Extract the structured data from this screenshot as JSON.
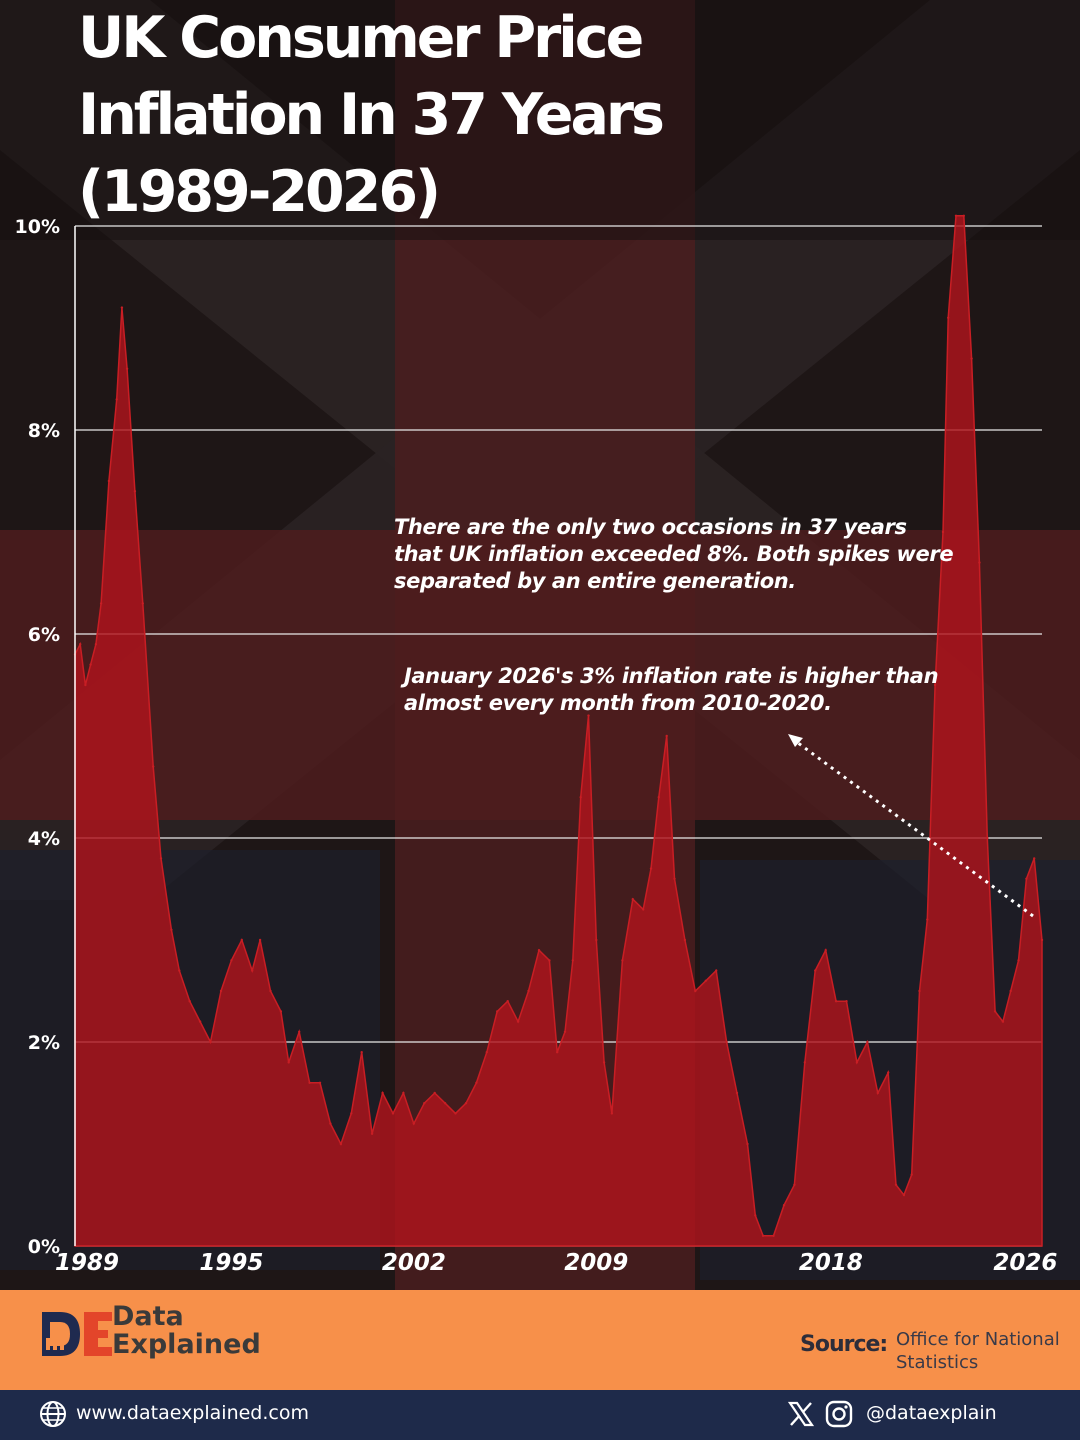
{
  "title": "UK Consumer Price Inflation In 37 Years (1989-2026)",
  "annotations": {
    "spikes": "There are the only two occasions in 37 years that UK inflation exceeded 8%. Both spikes were separated by an entire generation.",
    "january_2026": "January 2026's 3% inflation rate is higher than almost every month from 2010-2020."
  },
  "footer": {
    "brand_mark": "DE",
    "brand_name": "Data\nExplained",
    "source_label": "Source:",
    "source_value": "Office for National Statistics",
    "website": "www.dataexplained.com",
    "social_handle": "@dataexplain"
  },
  "icons": [
    "globe-icon",
    "x-logo-icon",
    "instagram-icon"
  ],
  "colors": {
    "area_fill": "#b0141c",
    "area_stroke": "#c81e24",
    "footer_orange": "#f7904a",
    "bottom_bar_navy": "#1e2a4a",
    "brand_red": "#e3452a",
    "brand_navy": "#1f2a4f"
  },
  "chart_data": {
    "type": "area",
    "title": "UK Consumer Price Inflation In 37 Years (1989-2026)",
    "xlabel": "",
    "ylabel": "",
    "y_unit": "%",
    "ylim": [
      0,
      10
    ],
    "yticks": [
      0,
      2,
      4,
      6,
      8,
      10
    ],
    "ytick_labels": [
      "0%",
      "2%",
      "4%",
      "6%",
      "8%",
      "10%"
    ],
    "xlim": [
      1989.0,
      2026.1
    ],
    "xtick_labels": [
      "1989",
      "1995",
      "2002",
      "2009",
      "2018",
      "2026"
    ],
    "grid": true,
    "legend": "none",
    "x": [
      1989.0,
      1989.2,
      1989.4,
      1989.6,
      1989.8,
      1990.0,
      1990.3,
      1990.6,
      1990.8,
      1991.0,
      1991.3,
      1991.6,
      1992.0,
      1992.3,
      1992.7,
      1993.0,
      1993.4,
      1993.8,
      1994.2,
      1994.6,
      1995.0,
      1995.4,
      1995.8,
      1996.1,
      1996.5,
      1996.9,
      1997.2,
      1997.6,
      1998.0,
      1998.4,
      1998.8,
      1999.2,
      1999.6,
      2000.0,
      2000.4,
      2000.8,
      2001.2,
      2001.6,
      2002.0,
      2002.4,
      2002.8,
      2003.2,
      2003.6,
      2004.0,
      2004.4,
      2004.8,
      2005.2,
      2005.6,
      2006.0,
      2006.4,
      2006.8,
      2007.2,
      2007.5,
      2007.8,
      2008.1,
      2008.4,
      2008.7,
      2009.0,
      2009.3,
      2009.6,
      2010.0,
      2010.4,
      2010.8,
      2011.1,
      2011.4,
      2011.7,
      2012.0,
      2012.4,
      2012.8,
      2013.2,
      2013.6,
      2014.0,
      2014.4,
      2014.8,
      2015.1,
      2015.4,
      2015.8,
      2016.2,
      2016.6,
      2017.0,
      2017.4,
      2017.8,
      2018.2,
      2018.6,
      2019.0,
      2019.4,
      2019.8,
      2020.2,
      2020.5,
      2020.8,
      2021.1,
      2021.4,
      2021.7,
      2022.0,
      2022.3,
      2022.5,
      2022.8,
      2023.1,
      2023.4,
      2023.7,
      2024.0,
      2024.3,
      2024.6,
      2024.9,
      2025.2,
      2025.5,
      2025.8,
      2026.1
    ],
    "series": [
      {
        "values": [
          5.8,
          5.9,
          5.5,
          5.7,
          5.9,
          6.3,
          7.5,
          8.3,
          9.2,
          8.6,
          7.4,
          6.3,
          4.7,
          3.8,
          3.1,
          2.7,
          2.4,
          2.2,
          2.0,
          2.5,
          2.8,
          3.0,
          2.7,
          3.0,
          2.5,
          2.3,
          1.8,
          2.1,
          1.6,
          1.6,
          1.2,
          1.0,
          1.3,
          1.9,
          1.1,
          1.5,
          1.3,
          1.5,
          1.2,
          1.4,
          1.5,
          1.4,
          1.3,
          1.4,
          1.6,
          1.9,
          2.3,
          2.4,
          2.2,
          2.5,
          2.9,
          2.8,
          1.9,
          2.1,
          2.8,
          4.4,
          5.2,
          3.0,
          1.8,
          1.3,
          2.8,
          3.4,
          3.3,
          3.7,
          4.4,
          5.0,
          3.6,
          3.0,
          2.5,
          2.6,
          2.7,
          2.0,
          1.5,
          1.0,
          0.3,
          0.1,
          0.1,
          0.4,
          0.6,
          1.8,
          2.7,
          2.9,
          2.4,
          2.4,
          1.8,
          2.0,
          1.5,
          1.7,
          0.6,
          0.5,
          0.7,
          2.5,
          3.2,
          5.5,
          7.0,
          9.1,
          10.1,
          10.1,
          8.7,
          6.7,
          4.0,
          2.3,
          2.2,
          2.5,
          2.8,
          3.6,
          3.8,
          3.0
        ]
      }
    ]
  }
}
